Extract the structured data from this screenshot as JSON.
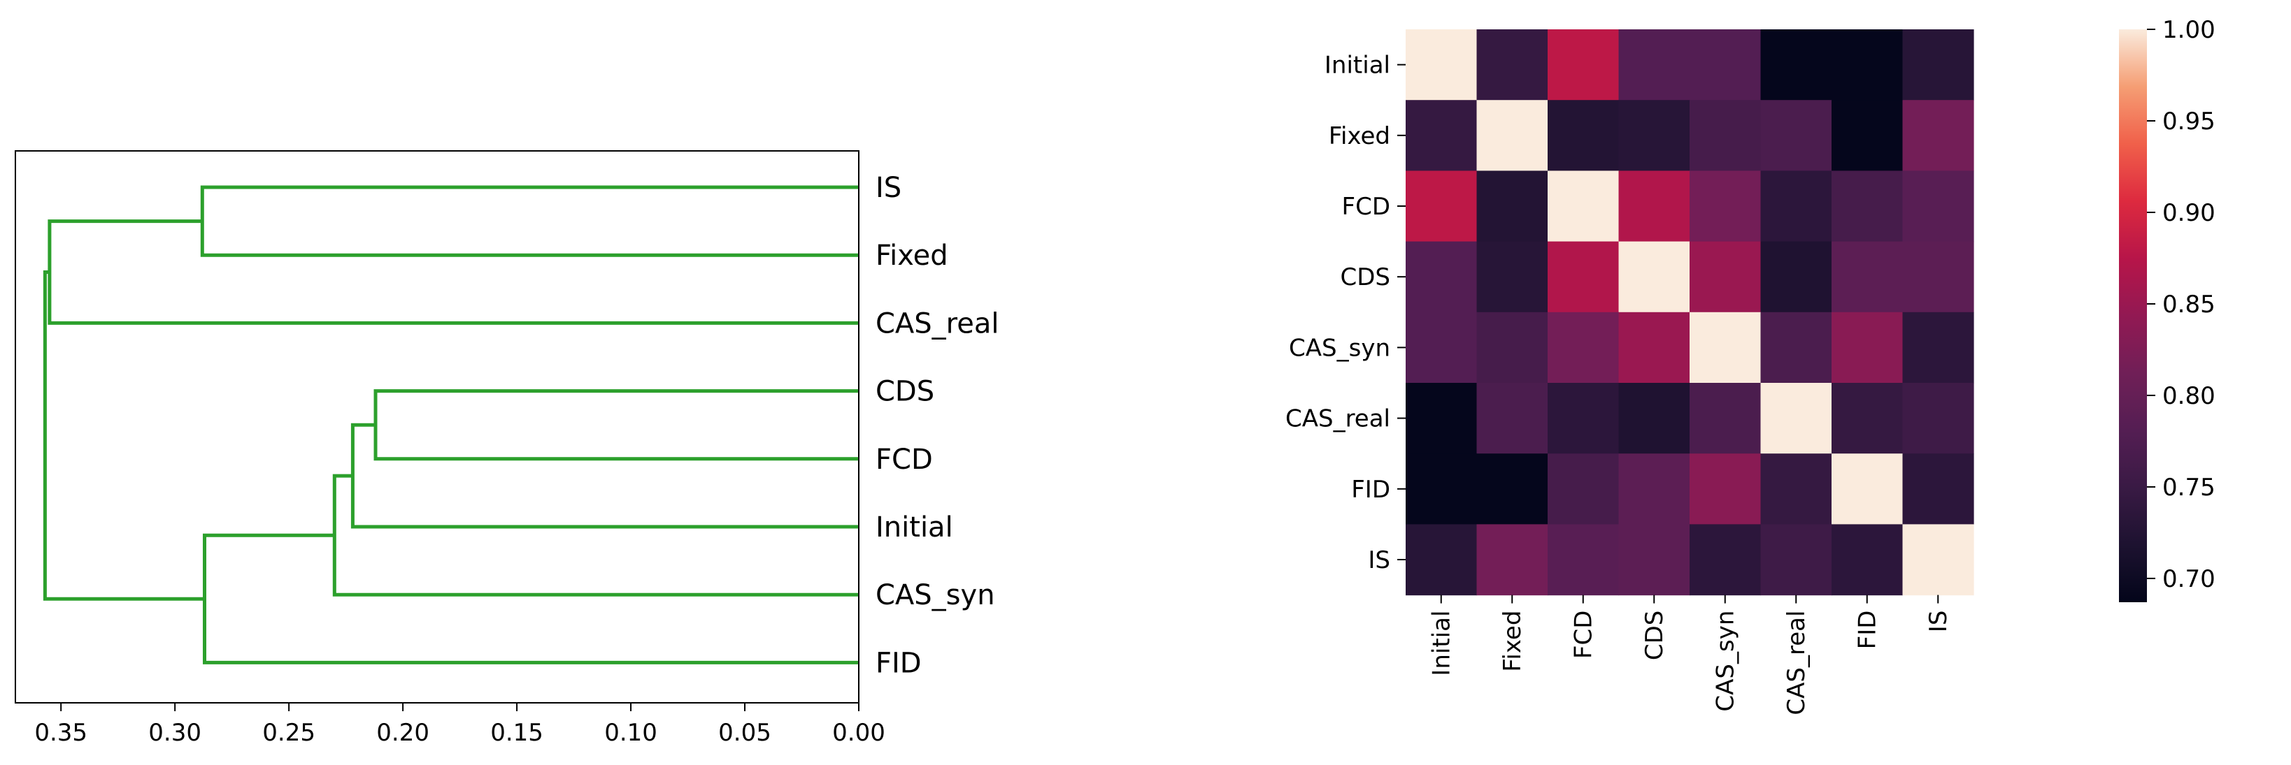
{
  "chart_data": [
    {
      "type": "dendrogram",
      "orientation": "right",
      "xlabel": "",
      "ylabel": "",
      "xlim": [
        0.37,
        0.0
      ],
      "xticks": [
        0.35,
        0.3,
        0.25,
        0.2,
        0.15,
        0.1,
        0.05,
        0.0
      ],
      "xtick_labels": [
        "0.35",
        "0.30",
        "0.25",
        "0.20",
        "0.15",
        "0.10",
        "0.05",
        "0.00"
      ],
      "leaves": [
        "IS",
        "Fixed",
        "CAS_real",
        "CDS",
        "FCD",
        "Initial",
        "CAS_syn",
        "FID"
      ],
      "link_color": "#2ca02c",
      "merges": [
        {
          "id": "m1",
          "left": "CDS",
          "right": "FCD",
          "height": 0.212
        },
        {
          "id": "m2",
          "left": "m1",
          "right": "Initial",
          "height": 0.222
        },
        {
          "id": "m3",
          "left": "m2",
          "right": "CAS_syn",
          "height": 0.23
        },
        {
          "id": "m4",
          "left": "m3",
          "right": "FID",
          "height": 0.287
        },
        {
          "id": "m5",
          "left": "IS",
          "right": "Fixed",
          "height": 0.288
        },
        {
          "id": "m6",
          "left": "m5",
          "right": "CAS_real",
          "height": 0.355
        },
        {
          "id": "m7",
          "left": "m6",
          "right": "m4",
          "height": 0.357
        }
      ]
    },
    {
      "type": "heatmap",
      "row_labels": [
        "Initial",
        "Fixed",
        "FCD",
        "CDS",
        "CAS_syn",
        "CAS_real",
        "FID",
        "IS"
      ],
      "col_labels": [
        "Initial",
        "Fixed",
        "FCD",
        "CDS",
        "CAS_syn",
        "CAS_real",
        "FID",
        "IS"
      ],
      "values": [
        [
          1.0,
          0.745,
          0.88,
          0.78,
          0.78,
          0.69,
          0.69,
          0.73
        ],
        [
          0.745,
          1.0,
          0.725,
          0.73,
          0.765,
          0.77,
          0.69,
          0.815
        ],
        [
          0.88,
          0.725,
          1.0,
          0.87,
          0.815,
          0.735,
          0.765,
          0.785
        ],
        [
          0.78,
          0.73,
          0.87,
          1.0,
          0.85,
          0.72,
          0.79,
          0.79
        ],
        [
          0.78,
          0.765,
          0.815,
          0.85,
          1.0,
          0.77,
          0.835,
          0.735
        ],
        [
          0.69,
          0.77,
          0.735,
          0.72,
          0.77,
          1.0,
          0.745,
          0.755
        ],
        [
          0.69,
          0.69,
          0.765,
          0.79,
          0.835,
          0.745,
          1.0,
          0.735
        ],
        [
          0.73,
          0.815,
          0.785,
          0.79,
          0.735,
          0.755,
          0.735,
          1.0
        ]
      ],
      "vmin": 0.687,
      "vmax": 1.0,
      "colormap": "rocket",
      "colorbar_ticks": [
        0.7,
        0.75,
        0.8,
        0.85,
        0.9,
        0.95,
        1.0
      ],
      "colorbar_tick_labels": [
        "0.70",
        "0.75",
        "0.80",
        "0.85",
        "0.90",
        "0.95",
        "1.00"
      ]
    }
  ]
}
